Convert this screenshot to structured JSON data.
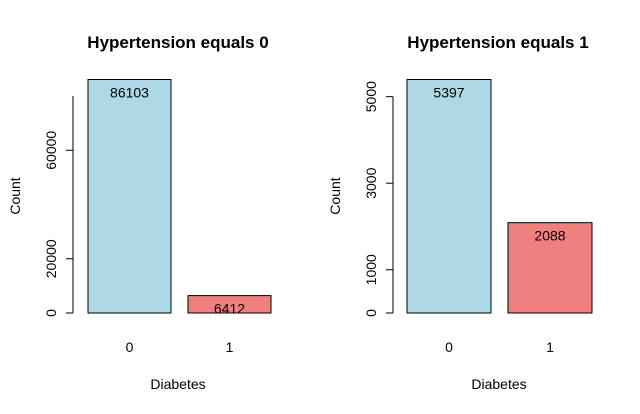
{
  "chart_data": [
    {
      "type": "bar",
      "title": "Hypertension equals 0",
      "xlabel": "Diabetes",
      "ylabel": "Count",
      "categories": [
        "0",
        "1"
      ],
      "values": [
        86103,
        6412
      ],
      "colors": [
        "#add8e6",
        "#f08080"
      ],
      "data_labels": [
        "86103",
        "6412"
      ],
      "yticks": [
        0,
        20000,
        60000
      ],
      "yaxis_max": 80000,
      "ylim": [
        0,
        86103
      ],
      "grid": false
    },
    {
      "type": "bar",
      "title": "Hypertension equals 1",
      "xlabel": "Diabetes",
      "ylabel": "Count",
      "categories": [
        "0",
        "1"
      ],
      "values": [
        5397,
        2088
      ],
      "colors": [
        "#add8e6",
        "#f08080"
      ],
      "data_labels": [
        "5397",
        "2088"
      ],
      "yticks": [
        0,
        1000,
        3000,
        5000
      ],
      "yaxis_max": 5000,
      "ylim": [
        0,
        5397
      ],
      "grid": false
    }
  ]
}
